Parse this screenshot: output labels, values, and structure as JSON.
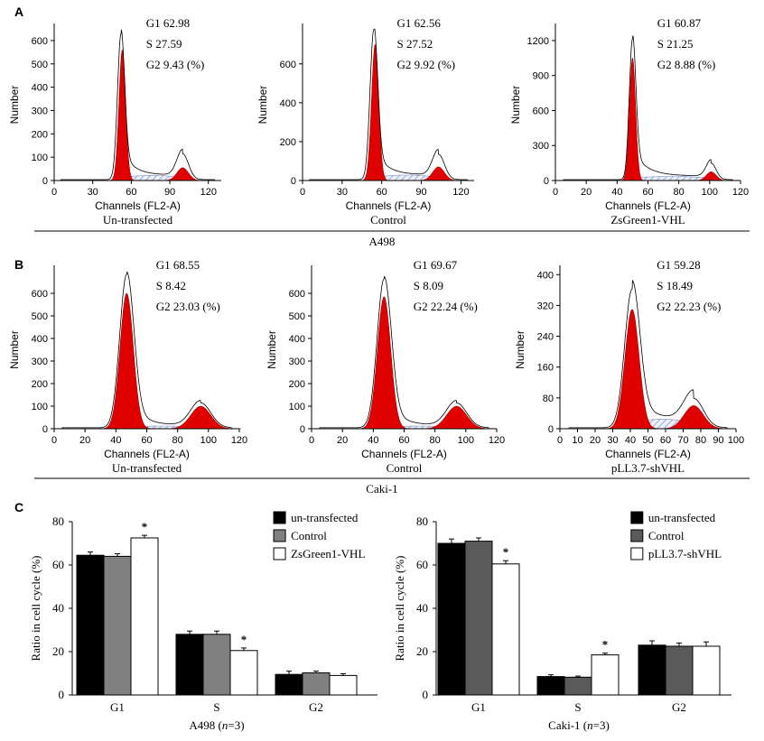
{
  "figure": {
    "panel_a": "A",
    "panel_b": "B",
    "panel_c": "C",
    "group_a": "A498",
    "group_b": "Caki-1"
  },
  "colors": {
    "g1_fill": "#e00000",
    "s_hatch": "#7a8fc8",
    "bar_untransfected": "#000000",
    "bar_control_a": "#808080",
    "bar_control_b": "#5a5a5a",
    "bar_treated": "#ffffff"
  },
  "chart_data": [
    {
      "type": "area",
      "panel": "A",
      "ylabel": "Number",
      "xlabel": "Channels (FL2-A)",
      "caption": "Un-transfected",
      "stats": [
        "G1 62.98",
        "S 27.59",
        "G2 9.43 (%)"
      ],
      "xlim": [
        0,
        130
      ],
      "xticks": [
        0,
        30,
        60,
        90,
        120
      ],
      "ylim": [
        0,
        650
      ],
      "yticks": [
        0,
        100,
        200,
        300,
        400,
        500,
        600
      ],
      "g1_peak": {
        "x": 53,
        "height": 560,
        "sd": 2.6
      },
      "g2_peak": {
        "x": 100,
        "height": 55,
        "sd": 4.5
      },
      "s_region": {
        "from": 55,
        "to": 97,
        "height": 22
      },
      "outline_peaks": [
        {
          "x": 52,
          "height": 625
        },
        {
          "x": 100,
          "height": 110
        }
      ]
    },
    {
      "type": "area",
      "panel": "A",
      "ylabel": "Number",
      "xlabel": "Channels (FL2-A)",
      "caption": "Control",
      "stats": [
        "G1 62.56",
        "S 27.52",
        "G2 9.92 (%)"
      ],
      "xlim": [
        0,
        130
      ],
      "xticks": [
        0,
        30,
        60,
        90,
        120
      ],
      "ylim": [
        0,
        780
      ],
      "yticks": [
        0,
        200,
        400,
        600
      ],
      "g1_peak": {
        "x": 55,
        "height": 700,
        "sd": 2.7
      },
      "g2_peak": {
        "x": 103,
        "height": 70,
        "sd": 4.5
      },
      "s_region": {
        "from": 57,
        "to": 100,
        "height": 28
      },
      "outline_peaks": [
        {
          "x": 54,
          "height": 770
        },
        {
          "x": 103,
          "height": 130
        }
      ]
    },
    {
      "type": "area",
      "panel": "A",
      "ylabel": "Number",
      "xlabel": "Channels (FL2-A)",
      "caption": "ZsGreen1-VHL",
      "stats": [
        "G1 60.87",
        "S 21.25",
        "G2 8.88 (%)"
      ],
      "xlim": [
        0,
        120
      ],
      "xticks": [
        0,
        20,
        40,
        60,
        80,
        100,
        120
      ],
      "ylim": [
        0,
        1300
      ],
      "yticks": [
        0,
        300,
        600,
        900,
        1200
      ],
      "g1_peak": {
        "x": 50,
        "height": 1050,
        "sd": 2.0
      },
      "g2_peak": {
        "x": 101,
        "height": 75,
        "sd": 3.2
      },
      "s_region": {
        "from": 52,
        "to": 98,
        "height": 35
      },
      "outline_peaks": [
        {
          "x": 50,
          "height": 1210
        },
        {
          "x": 101,
          "height": 140
        }
      ]
    },
    {
      "type": "area",
      "panel": "B",
      "ylabel": "Number",
      "xlabel": "Channels (FL2-A)",
      "caption": "Un-transfected",
      "stats": [
        "G1 68.55",
        "S 8.42",
        "G2 23.03 (%)"
      ],
      "xlim": [
        0,
        120
      ],
      "xticks": [
        0,
        20,
        40,
        60,
        80,
        100,
        120
      ],
      "ylim": [
        0,
        700
      ],
      "yticks": [
        0,
        100,
        200,
        300,
        400,
        500,
        600
      ],
      "g1_peak": {
        "x": 47,
        "height": 600,
        "sd": 4.3
      },
      "g2_peak": {
        "x": 95,
        "height": 100,
        "sd": 6.5
      },
      "s_region": {
        "from": 52,
        "to": 90,
        "height": 12
      },
      "outline_peaks": [
        {
          "x": 47,
          "height": 680
        },
        {
          "x": 95,
          "height": 110
        }
      ]
    },
    {
      "type": "area",
      "panel": "B",
      "ylabel": "Number",
      "xlabel": "Channels (FL2-A)",
      "caption": "Control",
      "stats": [
        "G1 69.67",
        "S 8.09",
        "G2 22.24 (%)"
      ],
      "xlim": [
        0,
        120
      ],
      "xticks": [
        0,
        20,
        40,
        60,
        80,
        100,
        120
      ],
      "ylim": [
        0,
        700
      ],
      "yticks": [
        0,
        100,
        200,
        300,
        400,
        500,
        600
      ],
      "g1_peak": {
        "x": 47,
        "height": 585,
        "sd": 4.3
      },
      "g2_peak": {
        "x": 94,
        "height": 100,
        "sd": 6.5
      },
      "s_region": {
        "from": 52,
        "to": 89,
        "height": 12
      },
      "outline_peaks": [
        {
          "x": 47,
          "height": 660
        },
        {
          "x": 94,
          "height": 110
        }
      ]
    },
    {
      "type": "area",
      "panel": "B",
      "ylabel": "Number",
      "xlabel": "Channels (FL2-A)",
      "caption": "pLL3.7-shVHL",
      "stats": [
        "G1 59.28",
        "S 18.49",
        "G2 22.23 (%)"
      ],
      "xlim": [
        0,
        100
      ],
      "xticks": [
        0,
        10,
        20,
        30,
        40,
        50,
        60,
        70,
        80,
        90,
        100
      ],
      "ylim": [
        0,
        410
      ],
      "yticks": [
        0,
        80,
        160,
        240,
        320,
        400
      ],
      "g1_peak": {
        "x": 41,
        "height": 310,
        "sd": 4.0
      },
      "g2_peak": {
        "x": 76,
        "height": 60,
        "sd": 5.5
      },
      "s_region": {
        "from": 43,
        "to": 73,
        "height": 25
      },
      "outline_peaks": [
        {
          "x": 41,
          "height": 360
        },
        {
          "x": 76,
          "height": 75
        }
      ]
    },
    {
      "type": "bar",
      "panel": "C",
      "categories": [
        "G1",
        "S",
        "G2"
      ],
      "xlabel": "A498 (",
      "xlabel_italic": "n",
      "xlabel_tail": "=3)",
      "ylabel": "Ratio in cell cycle (%)",
      "ylim": [
        0,
        80
      ],
      "yticks": [
        0,
        20,
        40,
        60,
        80
      ],
      "series": [
        {
          "name": "un-transfected",
          "values": [
            64.5,
            28,
            9.5
          ],
          "errors": [
            1.5,
            1.5,
            1.5
          ]
        },
        {
          "name": "Control",
          "values": [
            64,
            28,
            10.2
          ],
          "errors": [
            1.2,
            1.5,
            0.8
          ]
        },
        {
          "name": "ZsGreen1-VHL",
          "values": [
            72.5,
            20.5,
            9
          ],
          "errors": [
            1.2,
            1.2,
            0.8
          ]
        }
      ],
      "significance": [
        {
          "category": "G1",
          "series": 2,
          "label": "*"
        },
        {
          "category": "S",
          "series": 2,
          "label": "*"
        }
      ]
    },
    {
      "type": "bar",
      "panel": "C",
      "categories": [
        "G1",
        "S",
        "G2"
      ],
      "xlabel": "Caki-1 (",
      "xlabel_italic": "n",
      "xlabel_tail": "=3)",
      "ylabel": "Ratio in cell cycle (%)",
      "ylim": [
        0,
        80
      ],
      "yticks": [
        0,
        20,
        40,
        60,
        80
      ],
      "series": [
        {
          "name": "un-transfected",
          "values": [
            70,
            8.5,
            23
          ],
          "errors": [
            2,
            0.8,
            2
          ]
        },
        {
          "name": "Control",
          "values": [
            71,
            8.2,
            22.5
          ],
          "errors": [
            1.5,
            0.5,
            1.5
          ]
        },
        {
          "name": "pLL3.7-shVHL",
          "values": [
            60.5,
            18.5,
            22.5
          ],
          "errors": [
            1.5,
            0.8,
            2
          ]
        }
      ],
      "significance": [
        {
          "category": "G1",
          "series": 2,
          "label": "*"
        },
        {
          "category": "S",
          "series": 2,
          "label": "*"
        }
      ]
    }
  ]
}
